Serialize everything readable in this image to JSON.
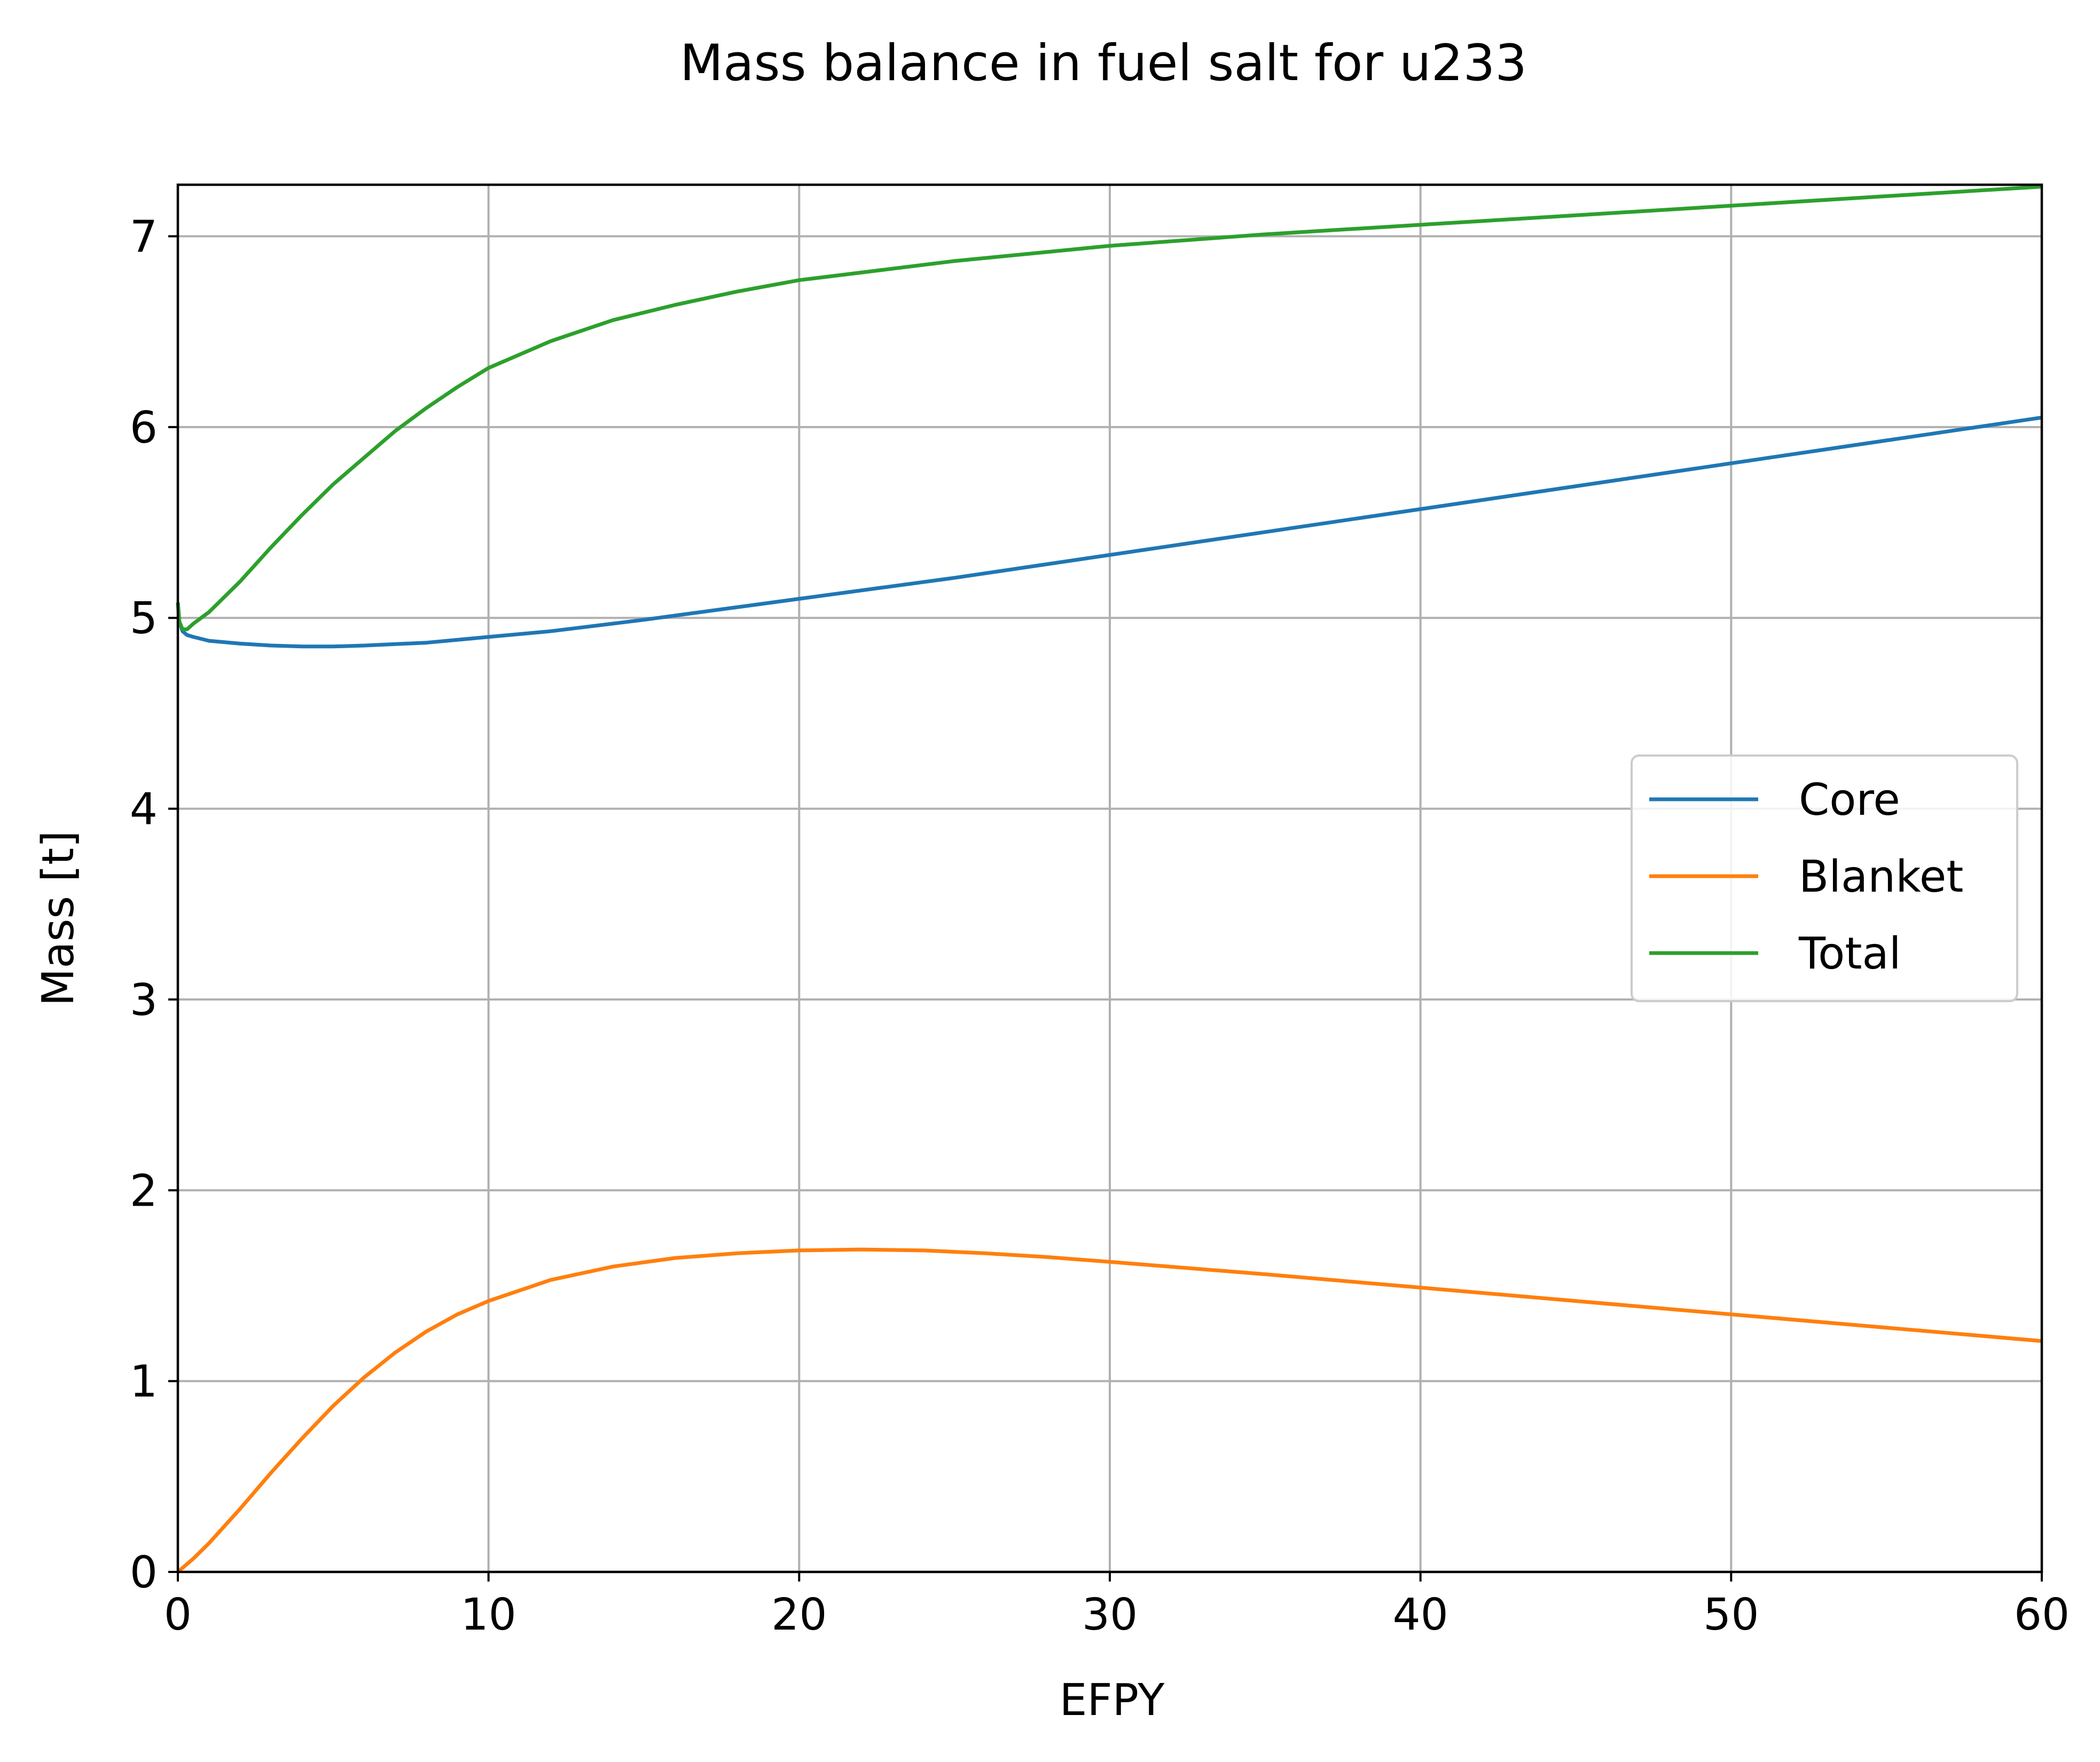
{
  "chart_data": {
    "type": "line",
    "title": "Mass balance in fuel salt for u233",
    "xlabel": "EFPY",
    "ylabel": "Mass [t]",
    "xlim": [
      0,
      60
    ],
    "ylim": [
      0,
      7.27
    ],
    "xticks": [
      0,
      10,
      20,
      30,
      40,
      50,
      60
    ],
    "yticks": [
      0,
      1,
      2,
      3,
      4,
      5,
      6,
      7
    ],
    "grid": true,
    "legend_position": "center-right",
    "series": [
      {
        "name": "Core",
        "color": "#1f77b4",
        "x": [
          0,
          0.05,
          0.15,
          0.3,
          0.5,
          1,
          2,
          3,
          4,
          5,
          6,
          8,
          10,
          12,
          15,
          20,
          25,
          30,
          35,
          40,
          45,
          50,
          55,
          60
        ],
        "y": [
          5.08,
          4.98,
          4.93,
          4.91,
          4.9,
          4.88,
          4.865,
          4.855,
          4.85,
          4.85,
          4.855,
          4.87,
          4.9,
          4.93,
          4.99,
          5.1,
          5.21,
          5.33,
          5.45,
          5.57,
          5.69,
          5.81,
          5.93,
          6.05
        ]
      },
      {
        "name": "Blanket",
        "color": "#ff7f0e",
        "x": [
          0,
          0.5,
          1,
          2,
          3,
          4,
          5,
          6,
          7,
          8,
          9,
          10,
          12,
          14,
          16,
          18,
          20,
          22,
          24,
          26,
          28,
          30,
          35,
          40,
          45,
          50,
          55,
          60
        ],
        "y": [
          0,
          0.07,
          0.15,
          0.33,
          0.52,
          0.7,
          0.87,
          1.02,
          1.15,
          1.26,
          1.35,
          1.42,
          1.53,
          1.6,
          1.645,
          1.67,
          1.685,
          1.69,
          1.685,
          1.67,
          1.65,
          1.625,
          1.56,
          1.49,
          1.42,
          1.35,
          1.28,
          1.21
        ]
      },
      {
        "name": "Total",
        "color": "#2ca02c",
        "x": [
          0,
          0.05,
          0.15,
          0.3,
          0.5,
          1,
          2,
          3,
          4,
          5,
          6,
          7,
          8,
          9,
          10,
          12,
          14,
          16,
          18,
          20,
          25,
          30,
          35,
          40,
          45,
          50,
          55,
          60
        ],
        "y": [
          5.08,
          4.98,
          4.94,
          4.94,
          4.97,
          5.03,
          5.19,
          5.37,
          5.54,
          5.7,
          5.84,
          5.98,
          6.1,
          6.21,
          6.31,
          6.45,
          6.56,
          6.64,
          6.71,
          6.77,
          6.87,
          6.95,
          7.01,
          7.06,
          7.11,
          7.16,
          7.21,
          7.26
        ]
      }
    ]
  }
}
